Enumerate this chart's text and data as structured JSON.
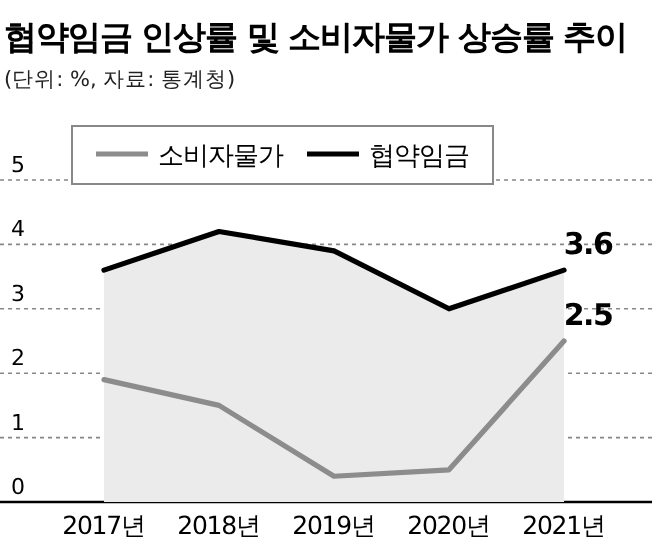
{
  "chart_data": {
    "type": "line",
    "title": "협약임금 인상률 및 소비자물가 상승률 추이",
    "subtitle": "(단위: %, 자료: 통계청)",
    "categories": [
      "2017년",
      "2018년",
      "2019년",
      "2020년",
      "2021년"
    ],
    "series": [
      {
        "name": "소비자물가",
        "color": "#8c8c8c",
        "values": [
          1.9,
          1.5,
          0.4,
          0.5,
          2.5
        ],
        "value_labels": [
          null,
          null,
          null,
          null,
          "2.5"
        ]
      },
      {
        "name": "협약임금",
        "type": "area",
        "color": "#000000",
        "values": [
          3.6,
          4.2,
          3.9,
          3.0,
          3.6
        ],
        "value_labels": [
          null,
          null,
          null,
          null,
          "3.6"
        ]
      }
    ],
    "ylim": [
      0,
      5
    ],
    "yticks": [
      0,
      1,
      2,
      3,
      4,
      5
    ],
    "grid": "y",
    "legend": "top",
    "line_style": "solid",
    "marker": "none"
  }
}
